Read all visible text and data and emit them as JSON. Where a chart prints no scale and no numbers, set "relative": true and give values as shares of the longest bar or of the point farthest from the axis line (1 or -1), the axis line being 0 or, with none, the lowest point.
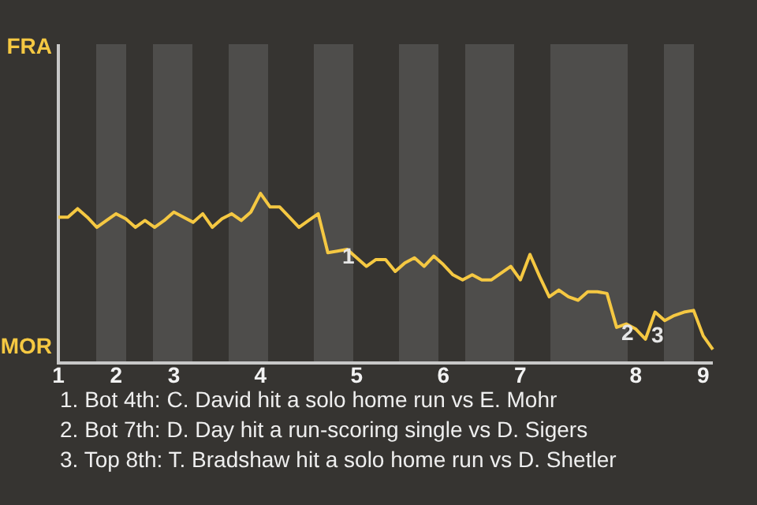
{
  "chart_data": {
    "type": "line",
    "relative": true,
    "legend": false,
    "marker": "none",
    "line_style": "solid",
    "categories": [
      "1",
      null,
      null,
      null,
      null,
      null,
      "2",
      null,
      null,
      null,
      null,
      null,
      "3",
      null,
      null,
      null,
      null,
      null,
      null,
      null,
      null,
      "4",
      null,
      null,
      null,
      null,
      null,
      null,
      null,
      null,
      null,
      "5",
      null,
      null,
      null,
      null,
      null,
      null,
      null,
      null,
      "6",
      null,
      null,
      null,
      null,
      null,
      null,
      null,
      "7",
      null,
      null,
      null,
      null,
      null,
      null,
      null,
      null,
      null,
      null,
      null,
      "8",
      null,
      null,
      null,
      null,
      null,
      null,
      "9",
      null
    ],
    "series": [
      {
        "color": "#f5c842",
        "values": [
          0.86,
          0.86,
          0.91,
          0.86,
          0.8,
          0.84,
          0.88,
          0.85,
          0.8,
          0.84,
          0.8,
          0.84,
          0.89,
          0.86,
          0.83,
          0.88,
          0.8,
          0.85,
          0.88,
          0.84,
          0.89,
          1,
          0.92,
          0.92,
          0.86,
          0.8,
          0.84,
          0.88,
          0.65,
          0.66,
          0.67,
          0.62,
          0.57,
          0.61,
          0.61,
          0.54,
          0.59,
          0.62,
          0.57,
          0.63,
          0.58,
          0.52,
          0.49,
          0.52,
          0.49,
          0.49,
          0.53,
          0.57,
          0.49,
          0.64,
          0.51,
          0.39,
          0.43,
          0.39,
          0.37,
          0.42,
          0.42,
          0.41,
          0.21,
          0.23,
          0.2,
          0.14,
          0.3,
          0.25,
          0.28,
          0.3,
          0.31,
          0.16,
          0.08
        ]
      }
    ],
    "annotations": [
      "FRA",
      "MOR",
      {
        "text": "1",
        "y": 0.66
      },
      {
        "text": "2",
        "y": 0.21
      },
      "3",
      "1. Bot 4th: C. David hit a solo home run vs E. Mohr",
      "2. Bot 7th: D. Day hit a run-scoring single vs D. Sigers",
      "3. Top 8th: T. Bradshaw hit a solo home run vs D. Shetler"
    ]
  }
}
